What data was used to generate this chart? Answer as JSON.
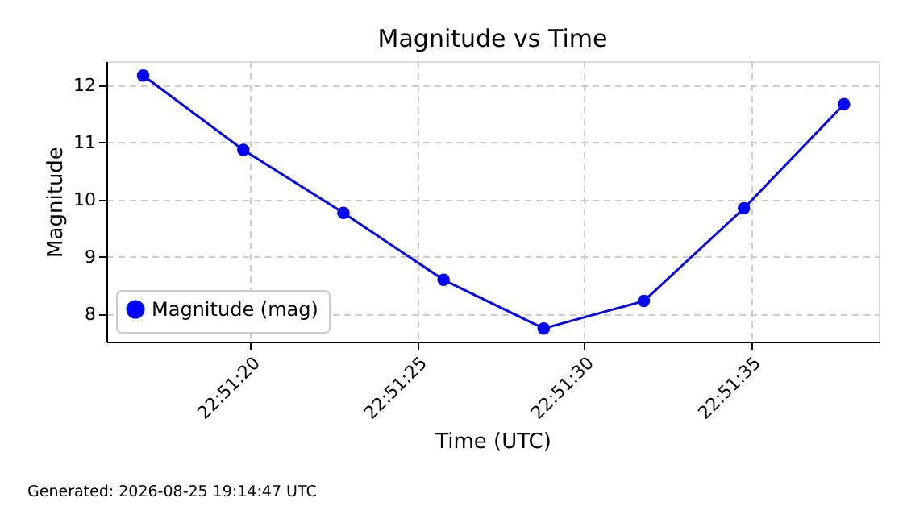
{
  "chart_data": {
    "type": "line",
    "title": "Magnitude vs Time",
    "xlabel": "Time (UTC)",
    "ylabel": "Magnitude",
    "x": [
      22.8546667,
      22.8555,
      22.8563333,
      22.8571667,
      22.858,
      22.8588333,
      22.8596667,
      22.8605
    ],
    "series": [
      {
        "name": "Magnitude (mag)",
        "color": "#0000ff",
        "values": [
          12.17,
          10.87,
          9.77,
          8.6,
          7.75,
          8.23,
          9.85,
          11.67
        ]
      }
    ],
    "xlim": [
      22.8543611,
      22.8607889
    ],
    "xticks": [
      {
        "value": 22.8555556,
        "label": "22:51:20"
      },
      {
        "value": 22.8569444,
        "label": "22:51:25"
      },
      {
        "value": 22.8583333,
        "label": "22:51:30"
      },
      {
        "value": 22.8597222,
        "label": "22:51:35"
      }
    ],
    "ylim": [
      7.52,
      12.42
    ],
    "yticks": [
      8,
      9,
      10,
      11,
      12
    ],
    "grid": true,
    "legend": "bottom left",
    "marker": "circle",
    "line_style": "solid",
    "annotations": [
      "Generated: 2026-08-25 19:14:47 UTC"
    ]
  }
}
